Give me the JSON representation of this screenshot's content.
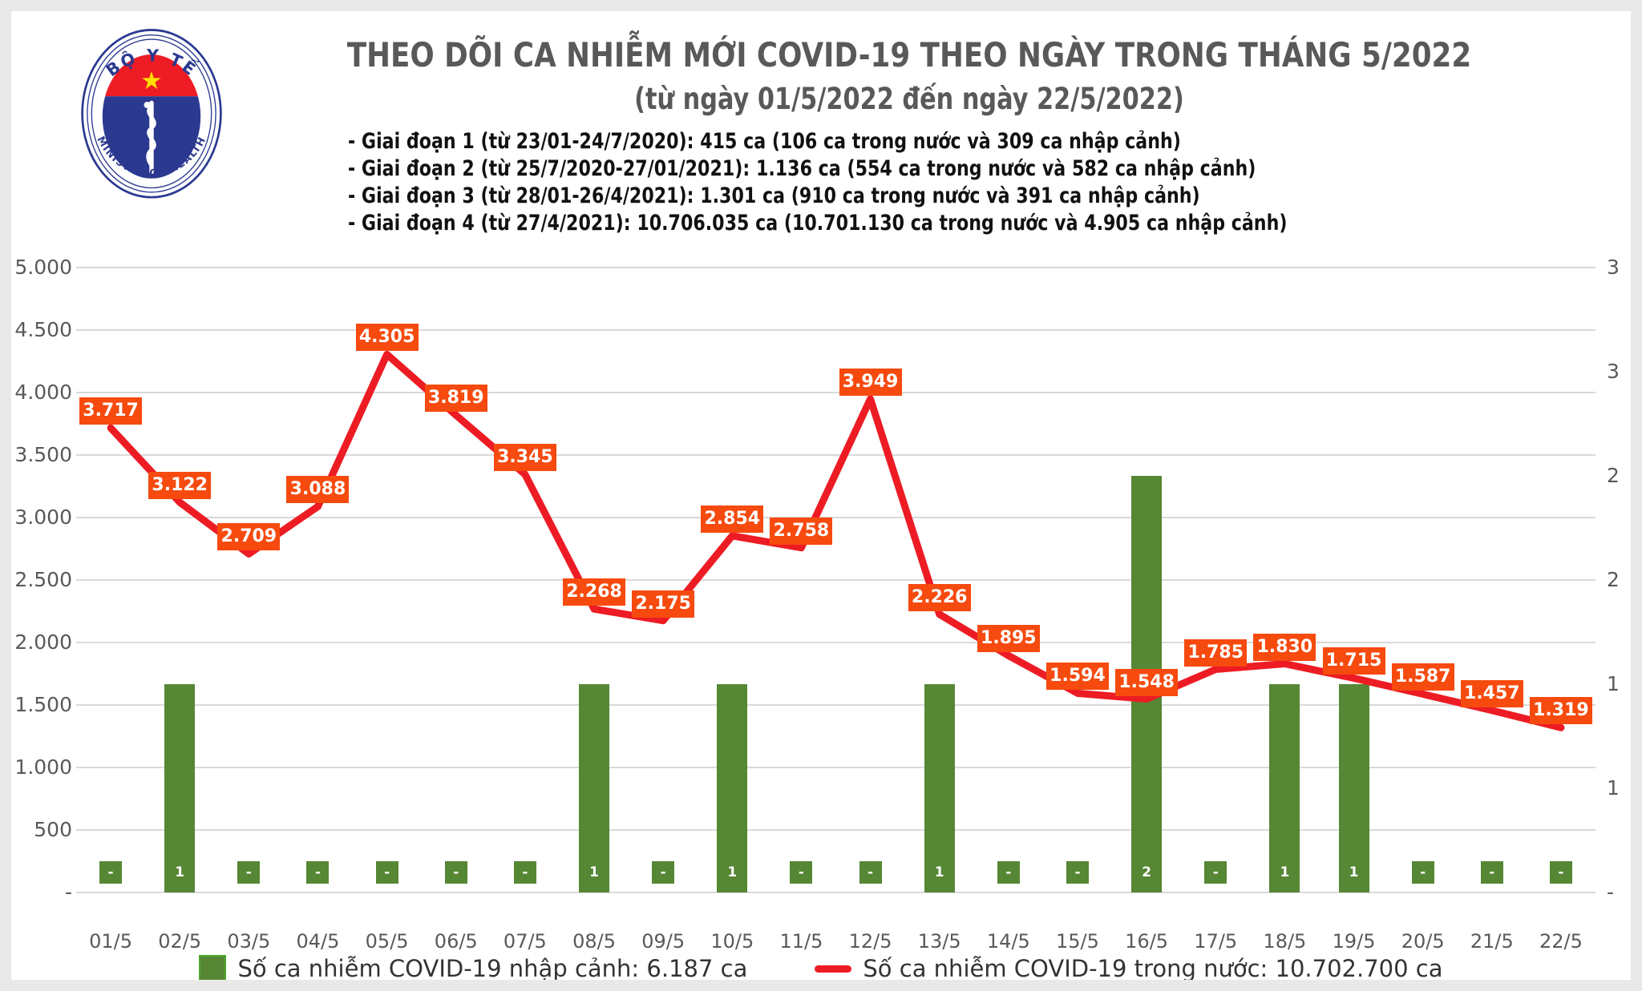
{
  "logo": {
    "top_text": "BỘ Y TẾ",
    "bottom_text": "MINISTRY OF HEALTH"
  },
  "header": {
    "title": "THEO DÕI CA NHIỄM MỚI COVID-19 THEO NGÀY TRONG THÁNG 5/2022",
    "subtitle": "(từ ngày 01/5/2022 đến ngày 22/5/2022)"
  },
  "notes": [
    "- Giai đoạn 1 (từ 23/01-24/7/2020): 415 ca (106 ca trong nước và 309 ca nhập cảnh)",
    "- Giai đoạn 2 (từ 25/7/2020-27/01/2021): 1.136 ca (554 ca trong nước và 582 ca nhập cảnh)",
    "- Giai đoạn 3 (từ 28/01-26/4/2021): 1.301 ca (910 ca trong nước và 391 ca nhập cảnh)",
    "- Giai đoạn 4 (từ 27/4/2021): 10.706.035 ca (10.701.130 ca trong nước và 4.905 ca nhập cảnh)"
  ],
  "chart_data": {
    "type": "combo-bar-line",
    "categories": [
      "01/5",
      "02/5",
      "03/5",
      "04/5",
      "05/5",
      "06/5",
      "07/5",
      "08/5",
      "09/5",
      "10/5",
      "11/5",
      "12/5",
      "13/5",
      "14/5",
      "15/5",
      "16/5",
      "17/5",
      "18/5",
      "19/5",
      "20/5",
      "21/5",
      "22/5"
    ],
    "series": [
      {
        "name": "Số ca nhiễm COVID-19 nhập cảnh",
        "type": "bar",
        "axis": "right",
        "color": "#568735",
        "values": [
          0,
          1,
          0,
          0,
          0,
          0,
          0,
          1,
          0,
          1,
          0,
          0,
          1,
          0,
          0,
          2,
          0,
          1,
          1,
          0,
          0,
          0
        ],
        "labels": [
          "-",
          "1",
          "-",
          "-",
          "-",
          "-",
          "-",
          "1",
          "-",
          "1",
          "-",
          "-",
          "1",
          "-",
          "-",
          "2",
          "-",
          "1",
          "1",
          "-",
          "-",
          "-"
        ]
      },
      {
        "name": "Số ca nhiễm COVID-19 trong nước",
        "type": "line",
        "axis": "left",
        "color": "#ed1c24",
        "values": [
          3717,
          3122,
          2709,
          3088,
          4305,
          3819,
          3345,
          2268,
          2175,
          2854,
          2758,
          3949,
          2226,
          1895,
          1594,
          1548,
          1785,
          1830,
          1715,
          1587,
          1457,
          1319
        ],
        "labels": [
          "3.717",
          "3.122",
          "2.709",
          "3.088",
          "4.305",
          "3.819",
          "3.345",
          "2.268",
          "2.175",
          "2.854",
          "2.758",
          "3.949",
          "2.226",
          "1.895",
          "1.594",
          "1.548",
          "1.785",
          "1.830",
          "1.715",
          "1.587",
          "1.457",
          "1.319"
        ]
      }
    ],
    "left_axis": {
      "min": 0,
      "max": 5000,
      "ticks": [
        "5.000",
        "4.500",
        "4.000",
        "3.500",
        "3.000",
        "2.500",
        "2.000",
        "1.500",
        "1.000",
        "500",
        "-"
      ]
    },
    "right_axis": {
      "min": 0,
      "max": 3,
      "ticks": [
        "3",
        "3",
        "2",
        "2",
        "1",
        "1",
        "-"
      ]
    },
    "grid": true,
    "legend_position": "bottom",
    "legend": [
      {
        "label": "Số ca nhiễm COVID-19 nhập cảnh: 6.187 ca",
        "color": "#568735"
      },
      {
        "label": "Số ca nhiễm COVID-19 trong nước: 10.702.700 ca",
        "color": "#ed1c24"
      }
    ]
  },
  "colors": {
    "line_red": "#ed1c24",
    "label_box_orange": "#f64a0e",
    "bar_green": "#568735",
    "title_gray": "#595959",
    "gridline": "#d9d9d9",
    "frame": "#e9e9e9"
  }
}
